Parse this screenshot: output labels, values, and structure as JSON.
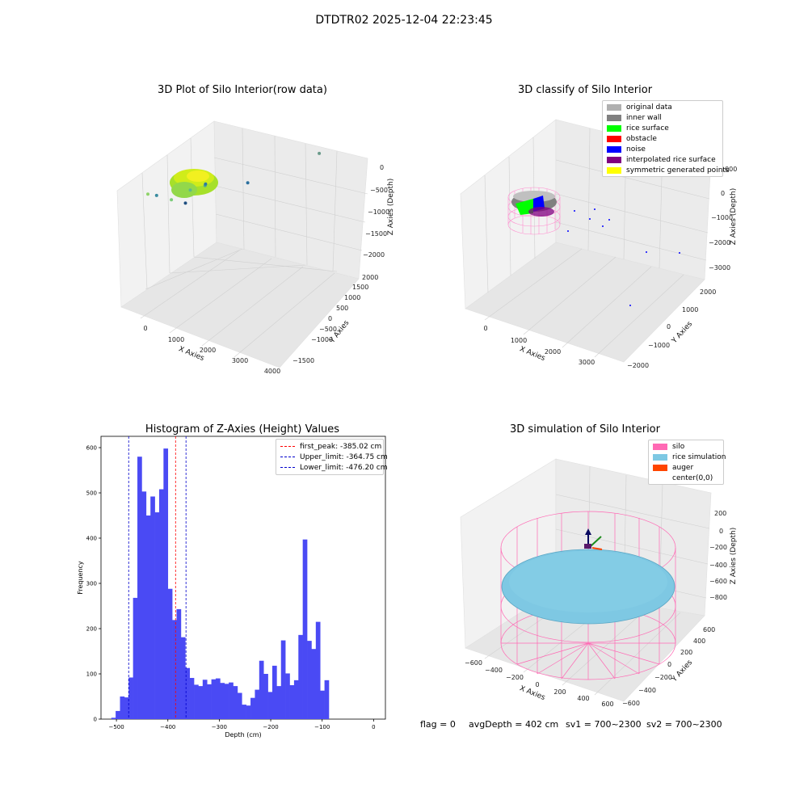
{
  "suptitle": "DTDTR02 2025-12-04 22:23:45",
  "footer": {
    "flag": "flag = 0",
    "avg_depth": "avgDepth = 402 cm",
    "sv1": "sv1 = 700~2300",
    "sv2": "sv2 = 700~2300"
  },
  "colors": {
    "histogram_bar": "#4a4af4",
    "peak_line": "#ff0000",
    "limit_lines": "#0000cc",
    "original_data": "#b0b0b0",
    "inner_wall": "#808080",
    "rice_surface": "#00ff00",
    "obstacle": "#ff0000",
    "noise": "#0000ff",
    "interpolated_rice_surface": "#800080",
    "symmetric_generated_points": "#ffff00",
    "silo": "#ff69b4",
    "rice_simulation": "#7ec8e3",
    "auger": "#ff4500",
    "center": "#ffffff"
  },
  "chart_data": [
    {
      "type": "scatter",
      "title": "3D Plot of Silo Interior(row data)",
      "xlabel": "X Axies",
      "ylabel": "Y Axies",
      "zlabel": "Z Axies (Depth)",
      "x_ticks": [
        "0",
        "1000",
        "2000",
        "3000",
        "4000"
      ],
      "y_ticks": [
        "−1500",
        "−1000",
        "−500",
        "0",
        "500",
        "1000",
        "1500",
        "2000"
      ],
      "z_ticks": [
        "−2000",
        "−1500",
        "−1000",
        "−500",
        "0"
      ],
      "points": [
        {
          "x": 500,
          "y": 200,
          "z": -400
        },
        {
          "x": 1200,
          "y": 100,
          "z": -700
        },
        {
          "x": 1500,
          "y": 300,
          "z": -900
        },
        {
          "x": 1600,
          "y": 600,
          "z": -800
        },
        {
          "x": 1100,
          "y": -200,
          "z": -1000
        },
        {
          "x": 1800,
          "y": 400,
          "z": -1100
        },
        {
          "x": 2700,
          "y": 600,
          "z": -1400
        },
        {
          "x": 3700,
          "y": 1500,
          "z": -1800
        },
        {
          "x": 2500,
          "y": -900,
          "z": -2100
        }
      ]
    },
    {
      "type": "scatter",
      "title": "3D classify of Silo Interior",
      "xlabel": "X Axies",
      "ylabel": "Y Axies",
      "zlabel": "Z Axies (Depth)",
      "x_ticks": [
        "0",
        "1000",
        "2000",
        "3000"
      ],
      "y_ticks": [
        "−2000",
        "−1000",
        "0",
        "1000",
        "2000"
      ],
      "z_ticks": [
        "−3000",
        "−2000",
        "−1000",
        "0",
        "1000"
      ],
      "legend": [
        {
          "label": "original data",
          "color": "#b0b0b0"
        },
        {
          "label": "inner wall",
          "color": "#808080"
        },
        {
          "label": "rice surface",
          "color": "#00ff00"
        },
        {
          "label": "obstacle",
          "color": "#ff0000"
        },
        {
          "label": "noise",
          "color": "#0000ff"
        },
        {
          "label": "interpolated rice surface",
          "color": "#800080"
        },
        {
          "label": "symmetric generated points",
          "color": "#ffff00"
        }
      ]
    },
    {
      "type": "bar",
      "title": "Histogram of Z-Axies (Height) Values",
      "xlabel": "Depth (cm)",
      "ylabel": "Frequency",
      "xlim": [
        -530,
        23
      ],
      "ylim": [
        0,
        625
      ],
      "x_ticks": [
        -500,
        -400,
        -300,
        -200,
        -100,
        0
      ],
      "y_ticks": [
        0,
        100,
        200,
        300,
        400,
        500,
        600
      ],
      "bin_start": -510,
      "bin_width": 8.46,
      "values": [
        3,
        18,
        50,
        48,
        92,
        268,
        580,
        503,
        450,
        492,
        457,
        508,
        598,
        288,
        219,
        243,
        181,
        113,
        91,
        76,
        73,
        87,
        77,
        88,
        90,
        80,
        78,
        81,
        73,
        58,
        32,
        30,
        47,
        65,
        129,
        100,
        60,
        118,
        73,
        174,
        101,
        75,
        86,
        186,
        397,
        173,
        155,
        215,
        63,
        86
      ],
      "reference_lines": [
        {
          "label": "first_peak: -385.02 cm",
          "x": -385.02,
          "color": "#ff0000"
        },
        {
          "label": "Upper_limit: -364.75 cm",
          "x": -364.75,
          "color": "#0000cc"
        },
        {
          "label": "Lower_limit: -476.20 cm",
          "x": -476.2,
          "color": "#0000cc"
        }
      ]
    },
    {
      "type": "scatter",
      "title": "3D simulation of Silo Interior",
      "xlabel": "X Axies",
      "ylabel": "Y Axies",
      "zlabel": "Z Axies (Depth)",
      "x_ticks": [
        "−600",
        "−400",
        "−200",
        "0",
        "200",
        "400",
        "600"
      ],
      "y_ticks": [
        "−600",
        "−400",
        "−200",
        "0",
        "200",
        "400",
        "600"
      ],
      "z_ticks": [
        "−800",
        "−600",
        "−400",
        "−200",
        "0",
        "200"
      ],
      "legend": [
        {
          "label": "silo",
          "color": "#ff69b4"
        },
        {
          "label": "rice simulation",
          "color": "#7ec8e3"
        },
        {
          "label": "auger",
          "color": "#ff4500"
        },
        {
          "label": "center(0,0)",
          "color": "#ffffff"
        }
      ]
    }
  ]
}
